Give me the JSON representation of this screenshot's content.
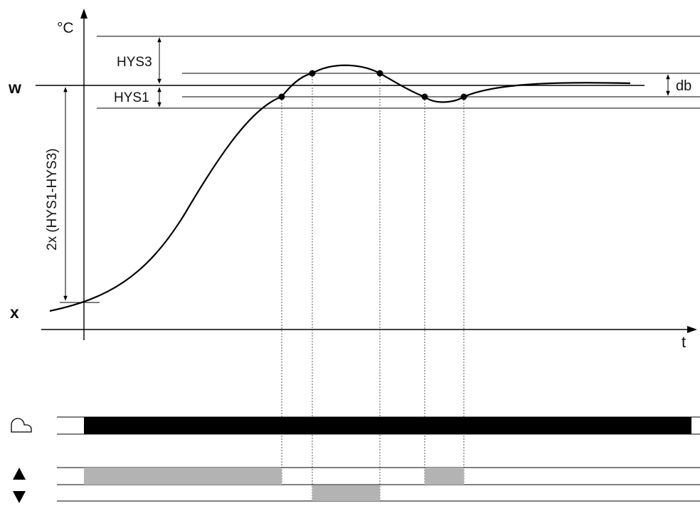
{
  "labels": {
    "y_unit": "°C",
    "w": "w",
    "x": "x",
    "t": "t",
    "hys3": "HYS3",
    "hys1": "HYS1",
    "db": "db",
    "span": "2x (HYS1-HYS3)"
  },
  "icons": {
    "controller": "controller-icon",
    "up": "raise-triangle-icon",
    "down": "lower-triangle-icon"
  },
  "colors": {
    "line": "#000000",
    "active_bar": "#000000",
    "relay_bar": "#b3b3b3"
  }
}
